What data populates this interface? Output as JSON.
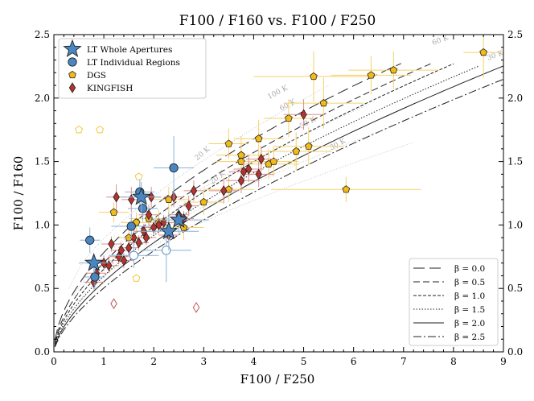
{
  "chart_data": {
    "type": "scatter",
    "title": "F100 / F160 vs. F100 / F250",
    "xlabel": "F100 / F250",
    "ylabel": "F100 / F160",
    "xlim": [
      0,
      9
    ],
    "ylim": [
      0,
      2.5
    ],
    "xticks": [
      "0",
      "1",
      "2",
      "3",
      "4",
      "5",
      "6",
      "7",
      "8",
      "9"
    ],
    "yticks": [
      "0.0",
      "0.5",
      "1.0",
      "1.5",
      "2.0",
      "2.5"
    ],
    "yticks_right": [
      "0.0",
      "0.5",
      "1.0",
      "1.5",
      "2.0",
      "2.5"
    ],
    "legend_points": {
      "placement": "top-left",
      "items": [
        {
          "label": "LT Whole Apertures",
          "marker": "star",
          "color": "#4a87c2"
        },
        {
          "label": "LT Individual Regions",
          "marker": "circle",
          "color": "#4a87c2"
        },
        {
          "label": "DGS",
          "marker": "pentagon",
          "color": "#f2bb15"
        },
        {
          "label": "KINGFISH",
          "marker": "diamond",
          "color": "#b8322d"
        }
      ]
    },
    "legend_lines": {
      "placement": "bottom-right",
      "items": [
        {
          "label": "β = 0.0",
          "dash": "14 6"
        },
        {
          "label": "β = 0.5",
          "dash": "8 4"
        },
        {
          "label": "β = 1.0",
          "dash": "4 2"
        },
        {
          "label": "β = 1.5",
          "dash": "1.5 2"
        },
        {
          "label": "β = 2.0",
          "dash": ""
        },
        {
          "label": "β = 2.5",
          "dash": "10 3 2 3"
        }
      ]
    },
    "model_curves": [
      {
        "beta": 0.0,
        "xmax": 6.95
      },
      {
        "beta": 0.5,
        "xmax": 7.6
      },
      {
        "beta": 1.0,
        "xmax": 8.0
      },
      {
        "beta": 1.5,
        "xmax": 8.5
      },
      {
        "beta": 2.0,
        "xmax": 9.0
      },
      {
        "beta": 2.5,
        "xmax": 9.0
      }
    ],
    "temperature_labels": [
      {
        "text": "100 K",
        "x": 4.5,
        "y": 2.03,
        "rot": -28
      },
      {
        "text": "60 K",
        "x": 4.7,
        "y": 1.93,
        "rot": -28
      },
      {
        "text": "50 K",
        "x": 5.1,
        "y": 1.79,
        "rot": -28
      },
      {
        "text": "30 K",
        "x": 5.7,
        "y": 1.62,
        "rot": -28
      },
      {
        "text": "20 K",
        "x": 3.0,
        "y": 1.55,
        "rot": -40
      },
      {
        "text": "20 K",
        "x": 3.3,
        "y": 1.36,
        "rot": -40
      },
      {
        "text": "60 K",
        "x": 7.75,
        "y": 2.44,
        "rot": -20
      },
      {
        "text": "30 K",
        "x": 8.85,
        "y": 2.32,
        "rot": -20
      }
    ],
    "series": [
      {
        "name": "LT Whole Apertures",
        "marker": "star",
        "color": "#4a87c2",
        "points": [
          {
            "x": 0.8,
            "y": 0.7,
            "xerr": 0.3,
            "yerr": 0.08
          },
          {
            "x": 1.75,
            "y": 1.22,
            "xerr": 0.4,
            "yerr": 0.12
          },
          {
            "x": 2.3,
            "y": 0.95,
            "xerr": 0.6,
            "yerr": 0.15
          },
          {
            "x": 2.5,
            "y": 1.04,
            "xerr": 0.6,
            "yerr": 0.1
          }
        ]
      },
      {
        "name": "LT Individual Regions",
        "marker": "circle",
        "color": "#4a87c2",
        "points": [
          {
            "x": 0.72,
            "y": 0.88,
            "xerr": 0.2,
            "yerr": 0.1
          },
          {
            "x": 0.82,
            "y": 0.59,
            "xerr": 0.2,
            "yerr": 0.1
          },
          {
            "x": 1.55,
            "y": 0.99,
            "xerr": 0.4,
            "yerr": 0.1
          },
          {
            "x": 1.72,
            "y": 1.26,
            "xerr": 0.3,
            "yerr": 0.1
          },
          {
            "x": 1.78,
            "y": 1.13,
            "xerr": 0.3,
            "yerr": 0.1
          },
          {
            "x": 2.4,
            "y": 1.45,
            "xerr": 0.4,
            "yerr": 0.25
          },
          {
            "x": 1.6,
            "y": 0.76,
            "xerr": 0.5,
            "yerr": 0.1,
            "open": true
          },
          {
            "x": 2.25,
            "y": 0.8,
            "xerr": 0.5,
            "yerr": 0.25,
            "open": true
          }
        ]
      },
      {
        "name": "DGS",
        "marker": "pentagon",
        "color": "#f2bb15",
        "points": [
          {
            "x": 0.5,
            "y": 1.75,
            "xerr": 0,
            "yerr": 0,
            "open": true
          },
          {
            "x": 0.92,
            "y": 1.75,
            "xerr": 0,
            "yerr": 0,
            "open": true
          },
          {
            "x": 1.2,
            "y": 1.1,
            "xerr": 0.3,
            "yerr": 0.08
          },
          {
            "x": 1.5,
            "y": 0.9,
            "xerr": 0.2,
            "yerr": 0.06
          },
          {
            "x": 1.65,
            "y": 1.02,
            "xerr": 0.3,
            "yerr": 0.08
          },
          {
            "x": 1.7,
            "y": 1.38,
            "xerr": 0,
            "yerr": 0,
            "open": true
          },
          {
            "x": 1.65,
            "y": 0.58,
            "xerr": 0,
            "yerr": 0,
            "open": true
          },
          {
            "x": 1.9,
            "y": 1.05,
            "xerr": 0.4,
            "yerr": 0.1
          },
          {
            "x": 2.1,
            "y": 1.02,
            "xerr": 0.4,
            "yerr": 0.1
          },
          {
            "x": 2.3,
            "y": 1.2,
            "xerr": 0.4,
            "yerr": 0.1
          },
          {
            "x": 2.6,
            "y": 0.98,
            "xerr": 0.4,
            "yerr": 0.1
          },
          {
            "x": 3.0,
            "y": 1.18,
            "xerr": 0.4,
            "yerr": 0.1
          },
          {
            "x": 3.5,
            "y": 1.28,
            "xerr": 0.5,
            "yerr": 0.1
          },
          {
            "x": 3.5,
            "y": 1.64,
            "xerr": 0.4,
            "yerr": 0.12
          },
          {
            "x": 3.75,
            "y": 1.55,
            "xerr": 0.5,
            "yerr": 0.15
          },
          {
            "x": 3.75,
            "y": 1.5,
            "xerr": 0.5,
            "yerr": 0.12
          },
          {
            "x": 4.1,
            "y": 1.68,
            "xerr": 0.5,
            "yerr": 0.15
          },
          {
            "x": 4.3,
            "y": 1.48,
            "xerr": 0.6,
            "yerr": 0.12
          },
          {
            "x": 4.4,
            "y": 1.5,
            "xerr": 0.5,
            "yerr": 0.12
          },
          {
            "x": 4.7,
            "y": 1.84,
            "xerr": 0.5,
            "yerr": 0.15
          },
          {
            "x": 4.85,
            "y": 1.58,
            "xerr": 0.7,
            "yerr": 0.15
          },
          {
            "x": 5.1,
            "y": 1.62,
            "xerr": 0.7,
            "yerr": 0.15
          },
          {
            "x": 5.2,
            "y": 2.17,
            "xerr": 1.2,
            "yerr": 0.2
          },
          {
            "x": 5.4,
            "y": 1.96,
            "xerr": 0.8,
            "yerr": 0.2
          },
          {
            "x": 5.85,
            "y": 1.28,
            "xerr": 1.5,
            "yerr": 0.1
          },
          {
            "x": 6.35,
            "y": 2.18,
            "xerr": 0.8,
            "yerr": 0.15
          },
          {
            "x": 6.8,
            "y": 2.22,
            "xerr": 0.9,
            "yerr": 0.15
          },
          {
            "x": 8.6,
            "y": 2.36,
            "xerr": 0.4,
            "yerr": 0.2
          }
        ]
      },
      {
        "name": "KINGFISH",
        "marker": "diamond",
        "color": "#b8322d",
        "points": [
          {
            "x": 0.8,
            "y": 0.55,
            "xerr": 0.2,
            "yerr": 0.06
          },
          {
            "x": 0.85,
            "y": 0.62,
            "xerr": 0.2,
            "yerr": 0.06
          },
          {
            "x": 1.0,
            "y": 0.7,
            "xerr": 0.2,
            "yerr": 0.06
          },
          {
            "x": 1.1,
            "y": 0.68,
            "xerr": 0.2,
            "yerr": 0.06
          },
          {
            "x": 1.15,
            "y": 0.85,
            "xerr": 0.2,
            "yerr": 0.06
          },
          {
            "x": 1.2,
            "y": 0.38,
            "xerr": 0,
            "yerr": 0,
            "open": true
          },
          {
            "x": 1.25,
            "y": 1.22,
            "xerr": 0.2,
            "yerr": 0.1
          },
          {
            "x": 1.3,
            "y": 0.75,
            "xerr": 0.2,
            "yerr": 0.06
          },
          {
            "x": 1.35,
            "y": 0.8,
            "xerr": 0.2,
            "yerr": 0.06
          },
          {
            "x": 1.4,
            "y": 0.72,
            "xerr": 0.2,
            "yerr": 0.06
          },
          {
            "x": 1.5,
            "y": 0.82,
            "xerr": 0.2,
            "yerr": 0.06
          },
          {
            "x": 1.55,
            "y": 1.2,
            "xerr": 0.2,
            "yerr": 0.1
          },
          {
            "x": 1.6,
            "y": 0.9,
            "xerr": 0.2,
            "yerr": 0.06
          },
          {
            "x": 1.7,
            "y": 0.86,
            "xerr": 0.2,
            "yerr": 0.06
          },
          {
            "x": 1.8,
            "y": 0.95,
            "xerr": 0.2,
            "yerr": 0.06
          },
          {
            "x": 1.85,
            "y": 0.9,
            "xerr": 0.2,
            "yerr": 0.06
          },
          {
            "x": 1.9,
            "y": 1.08,
            "xerr": 0.2,
            "yerr": 0.08
          },
          {
            "x": 1.95,
            "y": 1.22,
            "xerr": 0.2,
            "yerr": 0.08
          },
          {
            "x": 2.0,
            "y": 0.98,
            "xerr": 0.2,
            "yerr": 0.06
          },
          {
            "x": 2.1,
            "y": 1.0,
            "xerr": 0.2,
            "yerr": 0.06
          },
          {
            "x": 2.2,
            "y": 1.02,
            "xerr": 0.2,
            "yerr": 0.06
          },
          {
            "x": 2.3,
            "y": 0.92,
            "xerr": 0.2,
            "yerr": 0.06
          },
          {
            "x": 2.4,
            "y": 1.22,
            "xerr": 0.2,
            "yerr": 0.08
          },
          {
            "x": 2.5,
            "y": 1.08,
            "xerr": 0.2,
            "yerr": 0.06
          },
          {
            "x": 2.6,
            "y": 1.05,
            "xerr": 0.2,
            "yerr": 0.06
          },
          {
            "x": 2.7,
            "y": 1.15,
            "xerr": 0.2,
            "yerr": 0.08
          },
          {
            "x": 2.8,
            "y": 1.27,
            "xerr": 0.2,
            "yerr": 0.08
          },
          {
            "x": 2.85,
            "y": 0.35,
            "xerr": 0,
            "yerr": 0,
            "open": true
          },
          {
            "x": 3.4,
            "y": 1.27,
            "xerr": 0.3,
            "yerr": 0.1
          },
          {
            "x": 3.75,
            "y": 1.35,
            "xerr": 0.3,
            "yerr": 0.1
          },
          {
            "x": 3.8,
            "y": 1.42,
            "xerr": 0.3,
            "yerr": 0.1
          },
          {
            "x": 3.9,
            "y": 1.44,
            "xerr": 0.3,
            "yerr": 0.1
          },
          {
            "x": 4.1,
            "y": 1.4,
            "xerr": 0.3,
            "yerr": 0.1
          },
          {
            "x": 4.15,
            "y": 1.52,
            "xerr": 0.3,
            "yerr": 0.1
          },
          {
            "x": 5.0,
            "y": 1.87,
            "xerr": 0.4,
            "yerr": 0.12
          }
        ]
      }
    ]
  }
}
